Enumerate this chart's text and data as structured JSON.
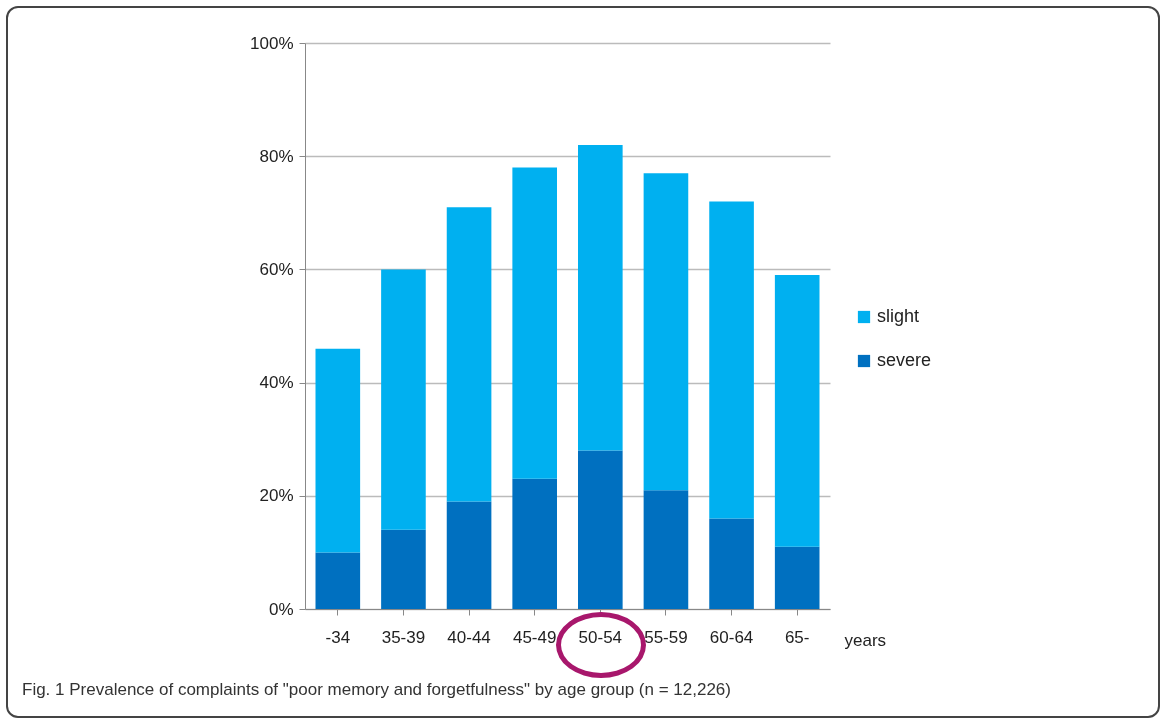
{
  "chart_data": {
    "type": "bar",
    "stacked": true,
    "categories": [
      "-34",
      "35-39",
      "40-44",
      "45-49",
      "50-54",
      "55-59",
      "60-64",
      "65-"
    ],
    "series": [
      {
        "name": "severe",
        "color": "#0070c0",
        "values": [
          10,
          14,
          19,
          23,
          28,
          21,
          16,
          11
        ]
      },
      {
        "name": "slight",
        "color": "#00b0f0",
        "values": [
          36,
          46,
          52,
          55,
          54,
          56,
          56,
          48
        ]
      }
    ],
    "xlabel": "years",
    "ylim": [
      0,
      100
    ],
    "yticks": [
      {
        "value": 0,
        "label": "0%"
      },
      {
        "value": 20,
        "label": "20%"
      },
      {
        "value": 40,
        "label": "40%"
      },
      {
        "value": 60,
        "label": "60%"
      },
      {
        "value": 80,
        "label": "80%"
      },
      {
        "value": 100,
        "label": "100%"
      }
    ],
    "grid": "y",
    "legend": "right",
    "annotations": [
      "Fig. 1 Prevalence of complaints of \"poor memory and forgetfulness\" by age group (n = 12,226)"
    ]
  }
}
